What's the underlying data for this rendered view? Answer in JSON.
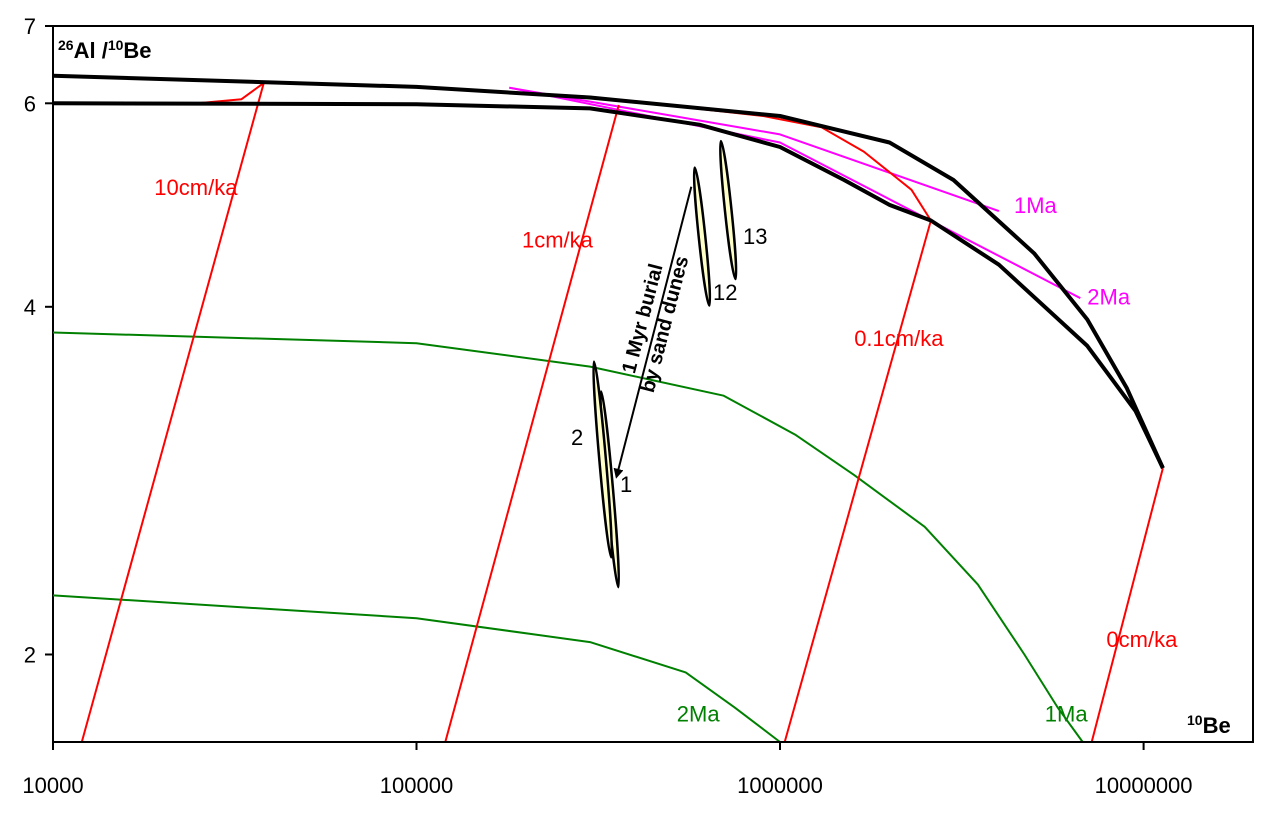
{
  "chart_data": {
    "type": "line",
    "x_scale": "log",
    "y_scale": "log",
    "xlim": [
      10000,
      20000000
    ],
    "ylim": [
      1.68,
      7
    ],
    "grid": false,
    "legend": "none",
    "x_ticks": [
      {
        "value": 10000,
        "label": "10000"
      },
      {
        "value": 100000,
        "label": "100000"
      },
      {
        "value": 1000000,
        "label": "1000000"
      },
      {
        "value": 10000000,
        "label": "10000000"
      }
    ],
    "y_ticks": [
      {
        "value": 2,
        "label": "2"
      },
      {
        "value": 4,
        "label": "4"
      },
      {
        "value": 6,
        "label": "6"
      },
      {
        "value": 7,
        "label": "7"
      }
    ],
    "y_title": {
      "sup1": "26",
      "base1": "Al /",
      "sup2": "10",
      "base2": "Be"
    },
    "x_title": {
      "sup": "10",
      "base": "Be"
    },
    "colors": {
      "envelope": "#000000",
      "erosion": "#ff0000",
      "burial_isochron": "#008000",
      "burial_time": "#ff00ff",
      "sample_fill": "#ffffc8"
    },
    "envelope": [
      {
        "name": "",
        "points": [
          [
            10000,
            6.34
          ],
          [
            100000,
            6.2
          ],
          [
            300000,
            6.07
          ],
          [
            1000000,
            5.85
          ],
          [
            2000000,
            5.55
          ],
          [
            3000000,
            5.15
          ],
          [
            5000000,
            4.45
          ],
          [
            7000000,
            3.9
          ],
          [
            9000000,
            3.4
          ],
          [
            11300000,
            2.9
          ]
        ]
      },
      {
        "name": "",
        "points": [
          [
            10000,
            6.0
          ],
          [
            100000,
            5.99
          ],
          [
            300000,
            5.94
          ],
          [
            600000,
            5.75
          ],
          [
            1000000,
            5.5
          ],
          [
            1500000,
            5.15
          ],
          [
            2000000,
            4.9
          ],
          [
            2600000,
            4.75
          ],
          [
            4000000,
            4.35
          ],
          [
            7000000,
            3.7
          ],
          [
            9500000,
            3.25
          ],
          [
            11300000,
            2.9
          ]
        ]
      }
    ],
    "erosion_lines": [
      {
        "label": "10cm/ka",
        "points": [
          [
            12000,
            1.68
          ],
          [
            38000,
            6.25
          ]
        ]
      },
      {
        "label": "1cm/ka",
        "points": [
          [
            120000,
            1.68
          ],
          [
            360000,
            5.98
          ]
        ]
      },
      {
        "label": "0.1cm/ka",
        "points": [
          [
            1030000,
            1.68
          ],
          [
            2600000,
            4.75
          ]
        ]
      },
      {
        "label": "0cm/ka",
        "points": [
          [
            7200000,
            1.68
          ],
          [
            11300000,
            2.9
          ]
        ]
      }
    ],
    "steady_state_curve": {
      "name": "",
      "points": [
        [
          10000,
          6.0
        ],
        [
          25000,
          6.0
        ],
        [
          33000,
          6.05
        ],
        [
          38000,
          6.25
        ],
        [
          100000,
          6.2
        ],
        [
          300000,
          6.08
        ],
        [
          900000,
          5.85
        ],
        [
          1300000,
          5.72
        ],
        [
          1700000,
          5.45
        ],
        [
          2300000,
          5.05
        ],
        [
          2600000,
          4.75
        ]
      ]
    },
    "burial_isochrons": [
      {
        "label": "1Ma",
        "points": [
          [
            10000,
            3.8
          ],
          [
            100000,
            3.72
          ],
          [
            300000,
            3.55
          ],
          [
            700000,
            3.35
          ],
          [
            1100000,
            3.1
          ],
          [
            1600000,
            2.86
          ],
          [
            2500000,
            2.58
          ],
          [
            3500000,
            2.3
          ],
          [
            4700000,
            2.0
          ],
          [
            5800000,
            1.8
          ],
          [
            6800000,
            1.68
          ]
        ]
      },
      {
        "label": "2Ma",
        "points": [
          [
            10000,
            2.25
          ],
          [
            100000,
            2.15
          ],
          [
            300000,
            2.05
          ],
          [
            550000,
            1.93
          ],
          [
            750000,
            1.8
          ],
          [
            1000000,
            1.68
          ]
        ]
      }
    ],
    "burial_time_lines": [
      {
        "label": "1Ma",
        "points": [
          [
            180000,
            6.19
          ],
          [
            1000000,
            5.64
          ],
          [
            4000000,
            4.84
          ]
        ]
      },
      {
        "label": "2Ma",
        "points": [
          [
            180000,
            6.19
          ],
          [
            1000000,
            5.55
          ],
          [
            6700000,
            4.07
          ]
        ]
      }
    ],
    "samples": [
      {
        "label": "1",
        "cx": 340000,
        "cy": 2.78,
        "rx": 0.009,
        "ry": 0.085,
        "angle": -5
      },
      {
        "label": "2",
        "cx": 325000,
        "cy": 2.95,
        "rx": 0.009,
        "ry": 0.085,
        "angle": -5
      },
      {
        "label": "12",
        "cx": 610000,
        "cy": 4.6,
        "rx": 0.009,
        "ry": 0.06,
        "angle": -6
      },
      {
        "label": "13",
        "cx": 720000,
        "cy": 4.85,
        "rx": 0.009,
        "ry": 0.06,
        "angle": -6
      }
    ],
    "arrow": {
      "from": [
        570000,
        5.08
      ],
      "to": [
        355000,
        2.85
      ],
      "label_line1": "1 Myr burial",
      "label_line2": "by sand dunes"
    },
    "annotations": [
      {
        "text": "10cm/ka",
        "x": 19000,
        "y": 5.0,
        "color": "#ff0000"
      },
      {
        "text": "1cm/ka",
        "x": 195000,
        "y": 4.5,
        "color": "#ff0000"
      },
      {
        "text": "0.1cm/ka",
        "x": 1600000,
        "y": 3.7,
        "color": "#ff0000"
      },
      {
        "text": "0cm/ka",
        "x": 7900000,
        "y": 2.03,
        "color": "#ff0000"
      },
      {
        "text": "1Ma",
        "x": 4400000,
        "y": 4.82,
        "color": "#ff00ff"
      },
      {
        "text": "2Ma",
        "x": 7000000,
        "y": 4.02,
        "color": "#ff00ff"
      },
      {
        "text": "2Ma",
        "x": 520000,
        "y": 1.75,
        "color": "#008000"
      },
      {
        "text": "1Ma",
        "x": 5350000,
        "y": 1.75,
        "color": "#008000"
      }
    ]
  }
}
